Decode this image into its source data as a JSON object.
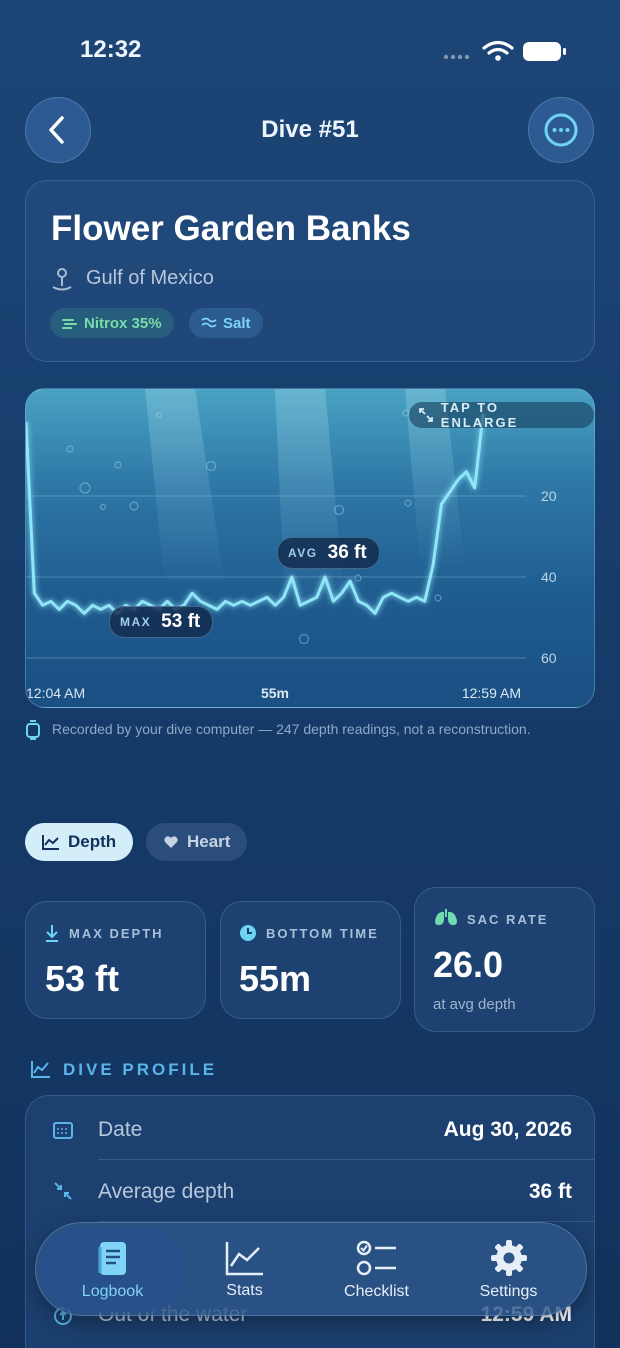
{
  "status_bar": {
    "time": "12:32"
  },
  "header": {
    "title": "Dive #51"
  },
  "site": {
    "name": "Flower Garden Banks",
    "location": "Gulf of Mexico",
    "tags": [
      "Nitrox 35%",
      "Salt"
    ]
  },
  "profile_chart": {
    "type": "line",
    "action": "TAP TO ENLARGE",
    "x_labels": [
      "12:04 AM",
      "55m",
      "12:59 AM"
    ],
    "x": [
      0,
      1,
      2,
      3,
      4,
      5,
      6,
      7,
      8,
      9,
      10,
      11,
      12,
      13,
      14,
      15,
      16,
      17,
      18,
      19,
      20,
      21,
      22,
      23,
      24,
      25,
      26,
      27,
      28,
      29,
      30,
      31,
      32,
      33,
      34,
      35,
      36,
      37,
      38,
      39,
      40,
      41,
      42,
      43,
      44,
      45,
      46,
      47,
      48,
      49,
      50,
      51,
      52,
      53,
      54,
      55
    ],
    "depth": [
      2,
      44,
      47,
      46,
      48,
      46,
      47,
      49,
      47,
      48,
      47,
      49,
      47,
      48,
      46,
      47,
      48,
      46,
      48,
      47,
      44,
      46,
      47,
      48,
      46,
      47,
      46,
      47,
      46,
      45,
      47,
      45,
      40,
      47,
      46,
      45,
      40,
      46,
      44,
      41,
      46,
      47,
      49,
      45,
      44,
      45,
      46,
      45,
      46,
      37,
      22,
      19,
      16,
      14,
      18,
      0
    ],
    "xlim": [
      0,
      55
    ],
    "ylim": [
      0,
      60
    ],
    "yticks": [
      20,
      40,
      60
    ],
    "y_inverted": true,
    "color": "#8fe6f8",
    "annotations": [
      {
        "label": "MAX",
        "text": "53 ft"
      },
      {
        "label": "AVG",
        "text": "36 ft"
      }
    ]
  },
  "note": "Recorded by your dive computer — 247 depth readings, not a reconstruction.",
  "tabs": {
    "items": [
      "Depth",
      "Heart"
    ],
    "active": 0
  },
  "stats": [
    {
      "label": "MAX DEPTH",
      "value": "53 ft"
    },
    {
      "label": "BOTTOM TIME",
      "value": "55m"
    },
    {
      "label": "SAC RATE",
      "value": "26.0",
      "caption": "at avg depth"
    }
  ],
  "section_title": "DIVE PROFILE",
  "details": [
    {
      "label": "Date",
      "value": "Aug 30, 2026"
    },
    {
      "label": "Average depth",
      "value": "36 ft"
    },
    {
      "label": "Out of the water",
      "value": "12:59 AM"
    }
  ],
  "nav": {
    "items": [
      "Logbook",
      "Stats",
      "Checklist",
      "Settings"
    ],
    "active": 0
  }
}
